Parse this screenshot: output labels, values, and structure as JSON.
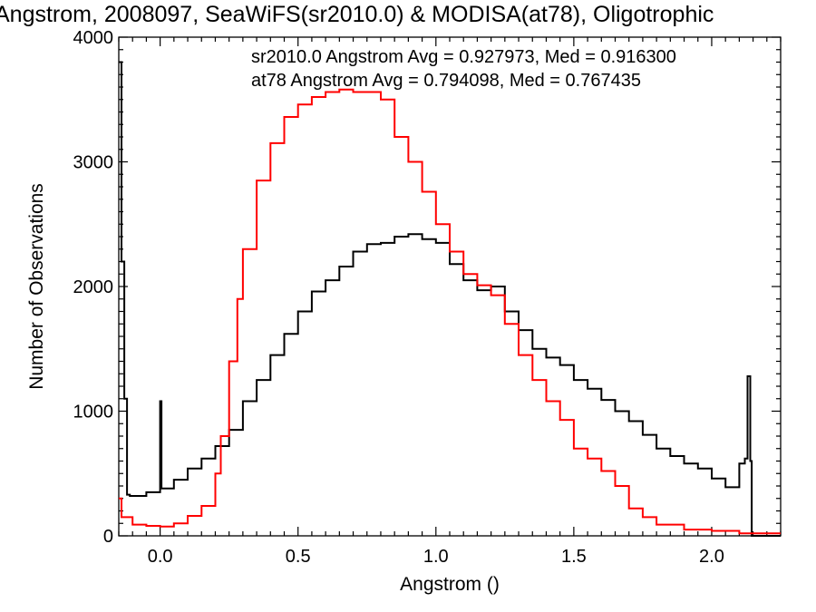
{
  "chart_data": {
    "type": "histogram-step",
    "title": "Angstrom, 2008097, SeaWiFS(sr2010.0) & MODISA(at78), Oligotrophic",
    "xlabel": "Angstrom ()",
    "ylabel": "Number of Observations",
    "xlim": [
      -0.15,
      2.25
    ],
    "ylim": [
      0,
      4000
    ],
    "x_ticks": [
      0.0,
      0.5,
      1.0,
      1.5,
      2.0
    ],
    "x_tick_labels": [
      "0.0",
      "0.5",
      "1.0",
      "1.5",
      "2.0"
    ],
    "y_ticks": [
      0,
      1000,
      2000,
      3000,
      4000
    ],
    "y_tick_labels": [
      "0",
      "1000",
      "2000",
      "3000",
      "4000"
    ],
    "annotations": [
      {
        "text": "sr2010.0 Angstrom Avg = 0.927973, Med = 0.916300",
        "color": "#000000"
      },
      {
        "text": "at78 Angstrom Avg = 0.794098, Med = 0.767435",
        "color": "#ff0000"
      }
    ],
    "series": [
      {
        "color": "#000000",
        "x": [
          -0.15,
          -0.14,
          -0.13,
          -0.12,
          -0.11,
          -0.1,
          -0.05,
          0.0,
          0.005,
          0.05,
          0.1,
          0.15,
          0.2,
          0.25,
          0.3,
          0.35,
          0.4,
          0.45,
          0.5,
          0.55,
          0.6,
          0.65,
          0.7,
          0.75,
          0.8,
          0.85,
          0.9,
          0.95,
          1.0,
          1.05,
          1.1,
          1.15,
          1.2,
          1.25,
          1.3,
          1.35,
          1.4,
          1.45,
          1.5,
          1.55,
          1.6,
          1.65,
          1.7,
          1.75,
          1.8,
          1.85,
          1.9,
          1.95,
          2.0,
          2.05,
          2.1,
          2.12,
          2.13,
          2.14,
          2.145,
          2.25
        ],
        "y": [
          3800,
          2200,
          1100,
          330,
          320,
          320,
          350,
          1080,
          380,
          450,
          540,
          620,
          720,
          850,
          1080,
          1250,
          1450,
          1620,
          1800,
          1960,
          2050,
          2160,
          2280,
          2340,
          2350,
          2400,
          2420,
          2380,
          2350,
          2180,
          2050,
          1970,
          2000,
          1800,
          1650,
          1500,
          1430,
          1370,
          1250,
          1180,
          1090,
          1000,
          920,
          810,
          700,
          640,
          580,
          540,
          460,
          390,
          580,
          620,
          1280,
          600,
          0,
          0
        ]
      },
      {
        "color": "#ff0000",
        "x": [
          -0.15,
          -0.14,
          -0.1,
          -0.05,
          0.0,
          0.05,
          0.1,
          0.15,
          0.2,
          0.22,
          0.25,
          0.28,
          0.3,
          0.35,
          0.4,
          0.45,
          0.5,
          0.55,
          0.6,
          0.65,
          0.7,
          0.75,
          0.8,
          0.85,
          0.9,
          0.95,
          1.0,
          1.05,
          1.1,
          1.15,
          1.2,
          1.25,
          1.3,
          1.35,
          1.4,
          1.45,
          1.5,
          1.55,
          1.6,
          1.65,
          1.7,
          1.75,
          1.8,
          1.9,
          2.0,
          2.1,
          2.25
        ],
        "y": [
          300,
          150,
          90,
          80,
          75,
          100,
          160,
          240,
          500,
          800,
          1400,
          1900,
          2300,
          2850,
          3150,
          3360,
          3460,
          3520,
          3560,
          3580,
          3560,
          3560,
          3500,
          3200,
          3000,
          2760,
          2500,
          2280,
          2100,
          2010,
          1930,
          1700,
          1450,
          1250,
          1080,
          930,
          700,
          620,
          520,
          400,
          220,
          150,
          90,
          50,
          40,
          20,
          10
        ]
      }
    ]
  }
}
